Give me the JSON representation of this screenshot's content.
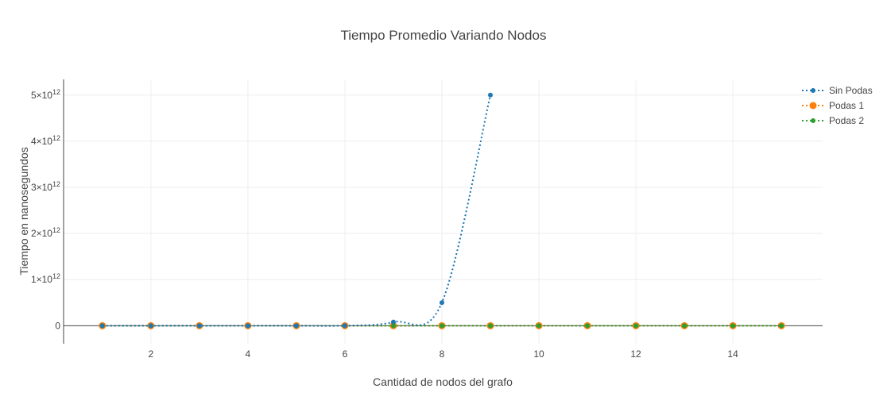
{
  "chart_data": {
    "type": "line",
    "title": "Tiempo Promedio Variando Nodos",
    "xlabel": "Cantidad de nodos del grafo",
    "ylabel": "Tiempo en nanosegundos",
    "xlim": [
      0.2,
      15.85
    ],
    "ylim": [
      -390000000000,
      5340000000000
    ],
    "x_ticks": [
      2,
      4,
      6,
      8,
      10,
      12,
      14
    ],
    "y_ticks": [
      0,
      1000000000000,
      2000000000000,
      3000000000000,
      4000000000000,
      5000000000000
    ],
    "y_tick_labels": [
      {
        "base": "0",
        "exp": ""
      },
      {
        "base": "1×10",
        "exp": "12"
      },
      {
        "base": "2×10",
        "exp": "12"
      },
      {
        "base": "3×10",
        "exp": "12"
      },
      {
        "base": "4×10",
        "exp": "12"
      },
      {
        "base": "5×10",
        "exp": "12"
      }
    ],
    "grid": true,
    "legend_position": "top-right",
    "series": [
      {
        "name": "Sin Podas",
        "color": "#1f77b4",
        "marker_size": "small",
        "line_style": "dotted-spline",
        "x": [
          1,
          2,
          3,
          4,
          5,
          6,
          7,
          8,
          9
        ],
        "y": [
          0,
          0,
          0,
          0,
          0,
          1000000000,
          80000000000,
          500000000000,
          5000000000000
        ]
      },
      {
        "name": "Podas 1",
        "color": "#ff7f0e",
        "marker_size": "large",
        "line_style": "dotted",
        "x": [
          1,
          2,
          3,
          4,
          5,
          6,
          7,
          8,
          9,
          10,
          11,
          12,
          13,
          14,
          15
        ],
        "y": [
          0,
          0,
          0,
          0,
          0,
          0,
          0,
          0,
          0,
          0,
          0,
          0,
          0,
          0,
          0
        ]
      },
      {
        "name": "Podas 2",
        "color": "#2ca02c",
        "marker_size": "small",
        "line_style": "dotted",
        "x": [
          1,
          2,
          3,
          4,
          5,
          6,
          7,
          8,
          9,
          10,
          11,
          12,
          13,
          14,
          15
        ],
        "y": [
          0,
          0,
          0,
          0,
          0,
          0,
          0,
          0,
          0,
          0,
          0,
          0,
          0,
          0,
          0
        ]
      }
    ]
  }
}
